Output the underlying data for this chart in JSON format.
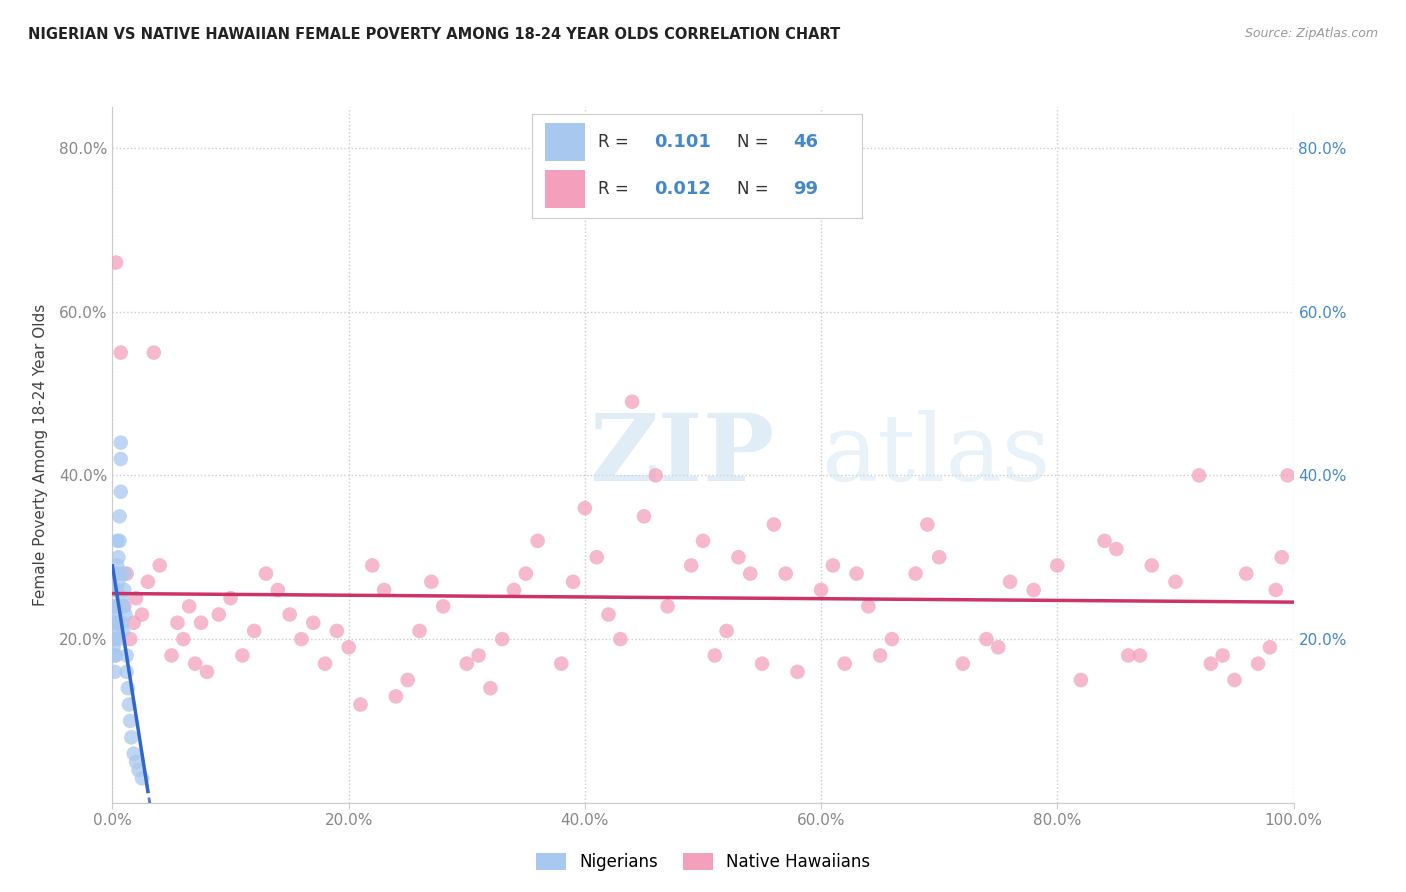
{
  "title": "NIGERIAN VS NATIVE HAWAIIAN FEMALE POVERTY AMONG 18-24 YEAR OLDS CORRELATION CHART",
  "source": "Source: ZipAtlas.com",
  "ylabel": "Female Poverty Among 18-24 Year Olds",
  "xlim": [
    0,
    1.0
  ],
  "ylim": [
    0,
    0.85
  ],
  "xticks": [
    0.0,
    0.2,
    0.4,
    0.6,
    0.8,
    1.0
  ],
  "xticklabels": [
    "0.0%",
    "20.0%",
    "40.0%",
    "60.0%",
    "80.0%",
    "100.0%"
  ],
  "yticks_left": [
    0.0,
    0.2,
    0.4,
    0.6,
    0.8
  ],
  "yticklabels_left": [
    "",
    "20.0%",
    "40.0%",
    "60.0%",
    "80.0%"
  ],
  "yticks_right": [
    0.2,
    0.4,
    0.6,
    0.8
  ],
  "yticklabels_right": [
    "20.0%",
    "40.0%",
    "60.0%",
    "80.0%"
  ],
  "nigerian_color": "#a8c8f0",
  "hawaiian_color": "#f4a0bc",
  "nigerian_R": "0.101",
  "nigerian_N": "46",
  "hawaiian_R": "0.012",
  "hawaiian_N": "99",
  "legend_label_nigerian": "Nigerians",
  "legend_label_hawaiian": "Native Hawaiians",
  "nigerian_line_color": "#3366cc",
  "hawaiian_line_color": "#cc3366",
  "watermark_zip": "ZIP",
  "watermark_atlas": "atlas",
  "background_color": "#ffffff",
  "grid_color": "#cccccc",
  "tick_color": "#888888",
  "title_color": "#222222",
  "source_color": "#999999",
  "right_tick_color": "#4488cc",
  "nigerian_x": [
    0.001,
    0.001,
    0.001,
    0.001,
    0.002,
    0.002,
    0.002,
    0.002,
    0.002,
    0.002,
    0.003,
    0.003,
    0.003,
    0.003,
    0.003,
    0.004,
    0.004,
    0.004,
    0.004,
    0.005,
    0.005,
    0.005,
    0.005,
    0.006,
    0.006,
    0.006,
    0.007,
    0.007,
    0.007,
    0.008,
    0.008,
    0.009,
    0.009,
    0.01,
    0.01,
    0.011,
    0.012,
    0.012,
    0.013,
    0.014,
    0.015,
    0.016,
    0.018,
    0.02,
    0.022,
    0.025
  ],
  "nigerian_y": [
    0.24,
    0.22,
    0.2,
    0.19,
    0.26,
    0.24,
    0.22,
    0.2,
    0.18,
    0.16,
    0.28,
    0.26,
    0.23,
    0.21,
    0.18,
    0.32,
    0.29,
    0.26,
    0.22,
    0.3,
    0.27,
    0.24,
    0.2,
    0.35,
    0.32,
    0.28,
    0.44,
    0.42,
    0.38,
    0.25,
    0.22,
    0.24,
    0.21,
    0.28,
    0.26,
    0.23,
    0.18,
    0.16,
    0.14,
    0.12,
    0.1,
    0.08,
    0.06,
    0.05,
    0.04,
    0.03
  ],
  "hawaiian_x": [
    0.003,
    0.005,
    0.007,
    0.01,
    0.012,
    0.015,
    0.018,
    0.02,
    0.025,
    0.03,
    0.035,
    0.04,
    0.05,
    0.055,
    0.06,
    0.065,
    0.07,
    0.075,
    0.08,
    0.09,
    0.1,
    0.11,
    0.12,
    0.13,
    0.14,
    0.15,
    0.16,
    0.17,
    0.18,
    0.19,
    0.2,
    0.21,
    0.22,
    0.23,
    0.24,
    0.25,
    0.26,
    0.27,
    0.28,
    0.3,
    0.31,
    0.32,
    0.33,
    0.34,
    0.35,
    0.36,
    0.38,
    0.39,
    0.4,
    0.41,
    0.42,
    0.43,
    0.44,
    0.45,
    0.46,
    0.47,
    0.49,
    0.5,
    0.51,
    0.52,
    0.53,
    0.54,
    0.55,
    0.56,
    0.57,
    0.58,
    0.6,
    0.61,
    0.62,
    0.63,
    0.64,
    0.65,
    0.66,
    0.68,
    0.69,
    0.7,
    0.72,
    0.74,
    0.75,
    0.76,
    0.78,
    0.8,
    0.82,
    0.84,
    0.85,
    0.86,
    0.87,
    0.88,
    0.9,
    0.92,
    0.93,
    0.94,
    0.95,
    0.96,
    0.97,
    0.98,
    0.985,
    0.99,
    0.995
  ],
  "hawaiian_y": [
    0.66,
    0.22,
    0.55,
    0.24,
    0.28,
    0.2,
    0.22,
    0.25,
    0.23,
    0.27,
    0.55,
    0.29,
    0.18,
    0.22,
    0.2,
    0.24,
    0.17,
    0.22,
    0.16,
    0.23,
    0.25,
    0.18,
    0.21,
    0.28,
    0.26,
    0.23,
    0.2,
    0.22,
    0.17,
    0.21,
    0.19,
    0.12,
    0.29,
    0.26,
    0.13,
    0.15,
    0.21,
    0.27,
    0.24,
    0.17,
    0.18,
    0.14,
    0.2,
    0.26,
    0.28,
    0.32,
    0.17,
    0.27,
    0.36,
    0.3,
    0.23,
    0.2,
    0.49,
    0.35,
    0.4,
    0.24,
    0.29,
    0.32,
    0.18,
    0.21,
    0.3,
    0.28,
    0.17,
    0.34,
    0.28,
    0.16,
    0.26,
    0.29,
    0.17,
    0.28,
    0.24,
    0.18,
    0.2,
    0.28,
    0.34,
    0.3,
    0.17,
    0.2,
    0.19,
    0.27,
    0.26,
    0.29,
    0.15,
    0.32,
    0.31,
    0.18,
    0.18,
    0.29,
    0.27,
    0.4,
    0.17,
    0.18,
    0.15,
    0.28,
    0.17,
    0.19,
    0.26,
    0.3,
    0.4
  ]
}
